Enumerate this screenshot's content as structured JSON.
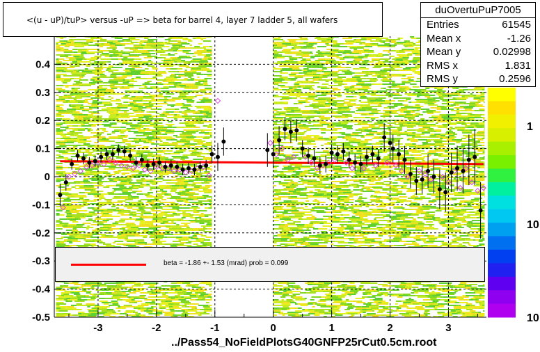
{
  "title": "<(u - uP)/tuP> versus  -uP => beta for barrel 4, layer 7 ladder 5, all wafers",
  "stats": {
    "name": "duOvertuPuP7005",
    "rows": [
      {
        "label": "Entries",
        "value": "61545"
      },
      {
        "label": "Mean x",
        "value": "-1.26"
      },
      {
        "label": "Mean y",
        "value": "0.02998"
      },
      {
        "label": "RMS x",
        "value": "1.831"
      },
      {
        "label": "RMS y",
        "value": "0.2596"
      }
    ]
  },
  "fit": {
    "legend": "beta =   -1.86 +-  1.53 (mrad) prob = 0.099",
    "color": "#ff0000"
  },
  "footer": "../Pass54_NoFieldPlotsG40GNFP25rCut0.5cm.root",
  "colorbar": {
    "labels": [
      "1",
      "10",
      "10"
    ],
    "colors": [
      "#ffff00",
      "#ffe000",
      "#f0f000",
      "#d8f000",
      "#a8f000",
      "#78f000",
      "#30f040",
      "#00f0a0",
      "#00e0e0",
      "#00c8f0",
      "#00a0f0",
      "#0070f0",
      "#0040f0",
      "#2020f0",
      "#6000f0",
      "#9000f0",
      "#b000f0"
    ]
  },
  "chart_data": {
    "type": "scatter",
    "xlim": [
      -3.75,
      3.65
    ],
    "ylim": [
      -0.5,
      0.5
    ],
    "x_ticks": [
      -3,
      -2,
      -1,
      0,
      1,
      2,
      3
    ],
    "y_ticks": [
      0.4,
      0.3,
      0.2,
      0.1,
      0,
      -0.1,
      -0.2,
      -0.3,
      -0.4,
      -0.5
    ],
    "y_tick_labels": [
      "0.4",
      "0.3",
      "0.2",
      "0.1",
      "0",
      "-0.1",
      "-0.2",
      "-0.3",
      "-0.4",
      "-0.5"
    ],
    "grid": true,
    "fit_line": {
      "x": [
        -3.65,
        3.6
      ],
      "y": [
        0.055,
        0.045
      ]
    },
    "series": [
      {
        "marker": "filled-circle",
        "points": [
          {
            "x": -3.65,
            "y": -0.065,
            "err": 0.04
          },
          {
            "x": -3.55,
            "y": -0.02,
            "err": 0.03
          },
          {
            "x": -3.45,
            "y": 0.045,
            "err": 0.02
          },
          {
            "x": -3.35,
            "y": 0.075,
            "err": 0.02
          },
          {
            "x": -3.25,
            "y": 0.065,
            "err": 0.02
          },
          {
            "x": -3.15,
            "y": 0.05,
            "err": 0.02
          },
          {
            "x": -3.05,
            "y": 0.055,
            "err": 0.02
          },
          {
            "x": -2.95,
            "y": 0.07,
            "err": 0.02
          },
          {
            "x": -2.85,
            "y": 0.08,
            "err": 0.02
          },
          {
            "x": -2.75,
            "y": 0.08,
            "err": 0.02
          },
          {
            "x": -2.65,
            "y": 0.095,
            "err": 0.02
          },
          {
            "x": -2.55,
            "y": 0.09,
            "err": 0.02
          },
          {
            "x": -2.45,
            "y": 0.075,
            "err": 0.02
          },
          {
            "x": -2.35,
            "y": 0.05,
            "err": 0.02
          },
          {
            "x": -2.25,
            "y": 0.06,
            "err": 0.02
          },
          {
            "x": -2.15,
            "y": 0.04,
            "err": 0.02
          },
          {
            "x": -2.05,
            "y": 0.045,
            "err": 0.02
          },
          {
            "x": -1.95,
            "y": 0.05,
            "err": 0.02
          },
          {
            "x": -1.85,
            "y": 0.035,
            "err": 0.02
          },
          {
            "x": -1.75,
            "y": 0.04,
            "err": 0.02
          },
          {
            "x": -1.65,
            "y": 0.035,
            "err": 0.02
          },
          {
            "x": -1.55,
            "y": 0.025,
            "err": 0.02
          },
          {
            "x": -1.45,
            "y": 0.03,
            "err": 0.02
          },
          {
            "x": -1.35,
            "y": 0.025,
            "err": 0.02
          },
          {
            "x": -1.25,
            "y": 0.035,
            "err": 0.02
          },
          {
            "x": -1.15,
            "y": 0.04,
            "err": 0.02
          },
          {
            "x": -1.05,
            "y": 0.08,
            "err": 0.03
          },
          {
            "x": -0.95,
            "y": 0.07,
            "err": 0.05
          },
          {
            "x": -0.85,
            "y": 0.125,
            "err": 0.05
          },
          {
            "x": -0.1,
            "y": 0.095,
            "err": 0.06
          },
          {
            "x": 0.0,
            "y": 0.08,
            "err": 0.05
          },
          {
            "x": 0.1,
            "y": 0.13,
            "err": 0.05
          },
          {
            "x": 0.2,
            "y": 0.17,
            "err": 0.04
          },
          {
            "x": 0.3,
            "y": 0.16,
            "err": 0.04
          },
          {
            "x": 0.4,
            "y": 0.165,
            "err": 0.04
          },
          {
            "x": 0.5,
            "y": 0.1,
            "err": 0.03
          },
          {
            "x": 0.6,
            "y": 0.075,
            "err": 0.03
          },
          {
            "x": 0.7,
            "y": 0.065,
            "err": 0.03
          },
          {
            "x": 0.8,
            "y": 0.04,
            "err": 0.03
          },
          {
            "x": 0.9,
            "y": 0.045,
            "err": 0.03
          },
          {
            "x": 1.0,
            "y": 0.085,
            "err": 0.03
          },
          {
            "x": 1.1,
            "y": 0.08,
            "err": 0.03
          },
          {
            "x": 1.2,
            "y": 0.09,
            "err": 0.03
          },
          {
            "x": 1.3,
            "y": 0.06,
            "err": 0.03
          },
          {
            "x": 1.4,
            "y": 0.05,
            "err": 0.03
          },
          {
            "x": 1.5,
            "y": 0.045,
            "err": 0.03
          },
          {
            "x": 1.6,
            "y": 0.07,
            "err": 0.03
          },
          {
            "x": 1.7,
            "y": 0.08,
            "err": 0.03
          },
          {
            "x": 1.8,
            "y": 0.065,
            "err": 0.03
          },
          {
            "x": 1.9,
            "y": 0.14,
            "err": 0.05
          },
          {
            "x": 2.0,
            "y": 0.12,
            "err": 0.05
          },
          {
            "x": 2.05,
            "y": 0.1,
            "err": 0.05
          },
          {
            "x": 2.15,
            "y": 0.08,
            "err": 0.05
          },
          {
            "x": 2.25,
            "y": 0.06,
            "err": 0.05
          },
          {
            "x": 2.35,
            "y": 0.01,
            "err": 0.05
          },
          {
            "x": 2.45,
            "y": -0.015,
            "err": 0.05
          },
          {
            "x": 2.55,
            "y": -0.01,
            "err": 0.05
          },
          {
            "x": 2.65,
            "y": 0.02,
            "err": 0.06
          },
          {
            "x": 2.75,
            "y": 0.0,
            "err": 0.06
          },
          {
            "x": 2.85,
            "y": -0.045,
            "err": 0.07
          },
          {
            "x": 2.95,
            "y": -0.055,
            "err": 0.07
          },
          {
            "x": 3.05,
            "y": 0.015,
            "err": 0.07
          },
          {
            "x": 3.15,
            "y": 0.03,
            "err": 0.08
          },
          {
            "x": 3.25,
            "y": 0.02,
            "err": 0.08
          },
          {
            "x": 3.35,
            "y": 0.06,
            "err": 0.09
          },
          {
            "x": 3.45,
            "y": 0.07,
            "err": 0.1
          },
          {
            "x": 3.55,
            "y": -0.12,
            "err": 0.1
          }
        ]
      },
      {
        "marker": "open-diamond",
        "points": [
          {
            "x": -3.6,
            "y": -0.11
          },
          {
            "x": -3.5,
            "y": 0.0
          },
          {
            "x": -3.4,
            "y": 0.01
          },
          {
            "x": -3.3,
            "y": 0.02
          },
          {
            "x": -3.2,
            "y": 0.035
          },
          {
            "x": -3.1,
            "y": 0.04
          },
          {
            "x": -3.0,
            "y": 0.05
          },
          {
            "x": -2.9,
            "y": 0.045
          },
          {
            "x": -2.8,
            "y": 0.06
          },
          {
            "x": -2.7,
            "y": 0.05
          },
          {
            "x": -2.6,
            "y": 0.04
          },
          {
            "x": -2.5,
            "y": 0.035
          },
          {
            "x": -2.4,
            "y": 0.03
          },
          {
            "x": -2.3,
            "y": 0.04
          },
          {
            "x": -2.2,
            "y": 0.025
          },
          {
            "x": -2.1,
            "y": 0.02
          },
          {
            "x": -2.0,
            "y": 0.035
          },
          {
            "x": -1.9,
            "y": 0.03
          },
          {
            "x": -1.8,
            "y": 0.03
          },
          {
            "x": -1.7,
            "y": 0.02
          },
          {
            "x": -1.6,
            "y": 0.025
          },
          {
            "x": -1.5,
            "y": 0.015
          },
          {
            "x": -1.4,
            "y": 0.02
          },
          {
            "x": -1.3,
            "y": 0.03
          },
          {
            "x": -1.2,
            "y": 0.035
          },
          {
            "x": -1.1,
            "y": 0.005
          },
          {
            "x": -0.95,
            "y": 0.27
          },
          {
            "x": -0.05,
            "y": 0.12
          },
          {
            "x": 0.05,
            "y": 0.08
          },
          {
            "x": 0.15,
            "y": 0.1
          },
          {
            "x": 0.25,
            "y": 0.06
          },
          {
            "x": 0.35,
            "y": 0.07
          },
          {
            "x": 0.55,
            "y": 0.07
          },
          {
            "x": 0.65,
            "y": 0.05
          },
          {
            "x": 0.75,
            "y": 0.03
          },
          {
            "x": 0.85,
            "y": 0.04
          },
          {
            "x": 0.95,
            "y": 0.05
          },
          {
            "x": 1.05,
            "y": 0.06
          },
          {
            "x": 1.25,
            "y": 0.05
          },
          {
            "x": 1.35,
            "y": 0.03
          },
          {
            "x": 1.55,
            "y": 0.03
          },
          {
            "x": 1.75,
            "y": 0.04
          },
          {
            "x": 1.95,
            "y": 0.05
          },
          {
            "x": 2.1,
            "y": 0.04
          },
          {
            "x": 2.2,
            "y": 0.02
          },
          {
            "x": 2.3,
            "y": 0.0
          },
          {
            "x": 2.5,
            "y": 0.02
          },
          {
            "x": 2.6,
            "y": 0.01
          },
          {
            "x": 2.7,
            "y": -0.01
          },
          {
            "x": 2.9,
            "y": 0.0
          },
          {
            "x": 3.0,
            "y": -0.02
          },
          {
            "x": 3.1,
            "y": 0.02
          },
          {
            "x": 3.2,
            "y": -0.04
          },
          {
            "x": 3.3,
            "y": 0.03
          },
          {
            "x": 3.4,
            "y": -0.02
          },
          {
            "x": 3.5,
            "y": -0.05
          },
          {
            "x": 3.6,
            "y": -0.04
          }
        ]
      }
    ]
  }
}
